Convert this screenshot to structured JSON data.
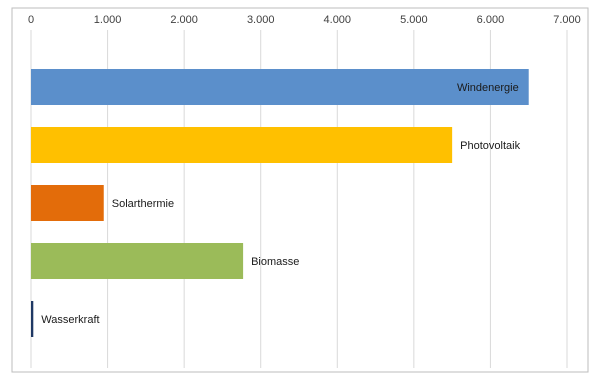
{
  "chart_data": {
    "type": "bar",
    "orientation": "horizontal",
    "categories": [
      "Windenergie",
      "Photovoltaik",
      "Solarthermie",
      "Biomasse",
      "Wasserkraft"
    ],
    "values": [
      6500,
      5500,
      950,
      2770,
      30
    ],
    "colors": [
      "#5b8fcb",
      "#ffc000",
      "#e36c0a",
      "#9bbb59",
      "#1f3864"
    ],
    "xlim": [
      0,
      7000
    ],
    "ticks": [
      0,
      1000,
      2000,
      3000,
      4000,
      5000,
      6000,
      7000
    ],
    "tick_labels": [
      "0",
      "1.000",
      "2.000",
      "3.000",
      "4.000",
      "5.000",
      "6.000",
      "7.000"
    ],
    "x_axis_position": "top",
    "grid": true,
    "legend": false,
    "title": "",
    "xlabel": "",
    "ylabel": ""
  }
}
